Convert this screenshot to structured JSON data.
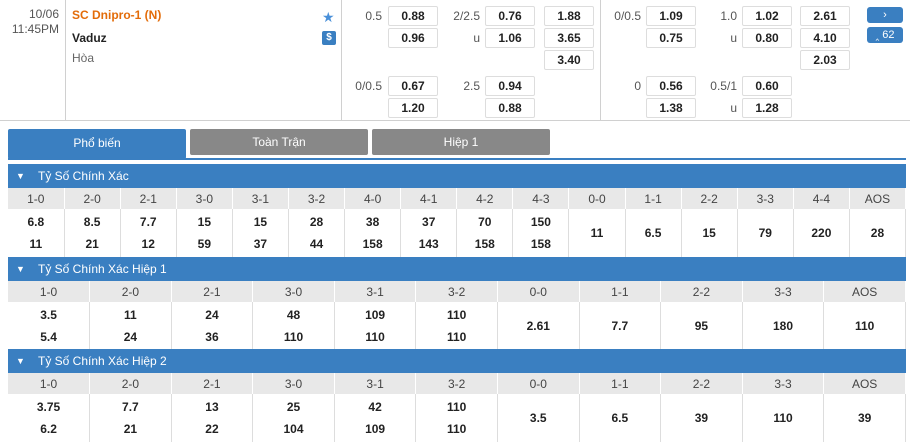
{
  "match": {
    "date": "10/06",
    "time": "11:45PM",
    "home": "SC Dnipro-1 (N)",
    "away": "Vaduz",
    "draw": "Hòa",
    "more_label": "›",
    "count_label": "‸ 62"
  },
  "odds": {
    "ft_hdp": {
      "line": "0.5",
      "home": "0.88",
      "away": "0.96"
    },
    "ft_ou": {
      "line": "2/2.5",
      "u": "u",
      "over": "0.76",
      "under": "1.06"
    },
    "ft_1x2": {
      "home": "1.88",
      "away": "3.65",
      "draw": "3.40"
    },
    "ft_hdp2": {
      "line": "0/0.5",
      "home": "0.67",
      "away": "1.20"
    },
    "ft_ou2": {
      "line": "2.5",
      "over": "0.94",
      "under": "0.88"
    },
    "h1_hdp": {
      "line": "0/0.5",
      "home": "1.09",
      "away": "0.75"
    },
    "h1_ou": {
      "line": "1.0",
      "u": "u",
      "over": "1.02",
      "under": "0.80"
    },
    "h1_1x2": {
      "home": "2.61",
      "away": "4.10",
      "draw": "2.03"
    },
    "h1_hdp2": {
      "line": "0",
      "home": "0.56",
      "away": "1.38"
    },
    "h1_ou2": {
      "line": "0.5/1",
      "u": "u",
      "over": "0.60",
      "under": "1.28"
    }
  },
  "tabs": [
    "Phổ biến",
    "Toàn Trận",
    "Hiệp 1"
  ],
  "sections": [
    {
      "title": "Tỷ Số Chính Xác",
      "headers": [
        "1-0",
        "2-0",
        "2-1",
        "3-0",
        "3-1",
        "3-2",
        "4-0",
        "4-1",
        "4-2",
        "4-3",
        "0-0",
        "1-1",
        "2-2",
        "3-3",
        "4-4",
        "AOS"
      ],
      "top": [
        "6.8",
        "8.5",
        "7.7",
        "15",
        "15",
        "28",
        "38",
        "37",
        "70",
        "150"
      ],
      "bottom": [
        "11",
        "21",
        "12",
        "59",
        "37",
        "44",
        "158",
        "143",
        "158",
        "158"
      ],
      "single": [
        "11",
        "6.5",
        "15",
        "79",
        "220",
        "28"
      ]
    },
    {
      "title": "Tỷ Số Chính Xác Hiệp 1",
      "headers": [
        "1-0",
        "2-0",
        "2-1",
        "3-0",
        "3-1",
        "3-2",
        "0-0",
        "1-1",
        "2-2",
        "3-3",
        "AOS"
      ],
      "top": [
        "3.5",
        "11",
        "24",
        "48",
        "109",
        "110"
      ],
      "bottom": [
        "5.4",
        "24",
        "36",
        "110",
        "110",
        "110"
      ],
      "single": [
        "2.61",
        "7.7",
        "95",
        "180",
        "110"
      ]
    },
    {
      "title": "Tỷ Số Chính Xác Hiệp 2",
      "headers": [
        "1-0",
        "2-0",
        "2-1",
        "3-0",
        "3-1",
        "3-2",
        "0-0",
        "1-1",
        "2-2",
        "3-3",
        "AOS"
      ],
      "top": [
        "3.75",
        "7.7",
        "13",
        "25",
        "42",
        "110"
      ],
      "bottom": [
        "6.2",
        "21",
        "22",
        "104",
        "109",
        "110"
      ],
      "single": [
        "3.5",
        "6.5",
        "39",
        "110",
        "39"
      ]
    }
  ]
}
